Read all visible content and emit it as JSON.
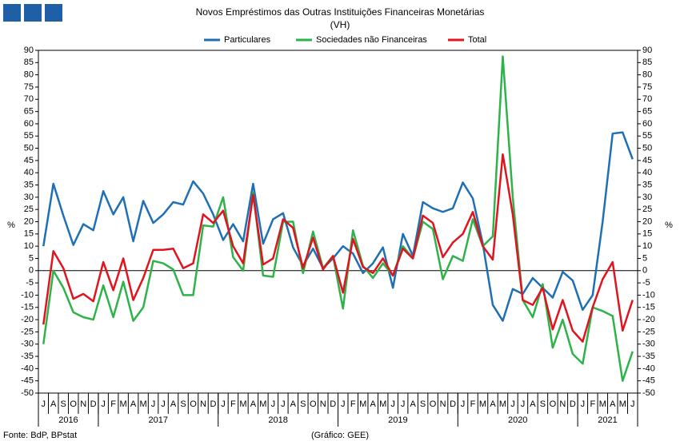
{
  "chart_data": {
    "type": "line",
    "title": "Novos Empréstimos das Outras Instituições Financeiras Monetárias",
    "subtitle": "(VH)",
    "y_label": "%",
    "y2_label": "%",
    "source": "Fonte: BdP, BPstat",
    "credit": "(Gráfico: GEE)",
    "categories": [
      "J",
      "A",
      "S",
      "O",
      "N",
      "D",
      "J",
      "F",
      "M",
      "A",
      "M",
      "J",
      "J",
      "A",
      "S",
      "O",
      "N",
      "D",
      "J",
      "F",
      "M",
      "A",
      "M",
      "J",
      "J",
      "A",
      "S",
      "O",
      "N",
      "D",
      "J",
      "F",
      "M",
      "A",
      "M",
      "J",
      "J",
      "A",
      "S",
      "O",
      "N",
      "D",
      "J",
      "F",
      "M",
      "A",
      "M",
      "J",
      "J",
      "A",
      "S",
      "O",
      "N",
      "D",
      "J",
      "F",
      "M",
      "A",
      "M",
      "J"
    ],
    "years": [
      "2016",
      "2017",
      "2018",
      "2019",
      "2020",
      "2021"
    ],
    "series": [
      {
        "name": "Particulares",
        "color": "#1f6fb4",
        "values": [
          10,
          35.5,
          22.5,
          10.5,
          19,
          16.5,
          32.5,
          23,
          30,
          12,
          28.5,
          19.5,
          23,
          28,
          27,
          36.5,
          31.5,
          23,
          12.5,
          19,
          12,
          35.5,
          11,
          21,
          23.5,
          9.5,
          2,
          9,
          1,
          5,
          10,
          7,
          -1,
          3,
          9.5,
          -7,
          15,
          6,
          28,
          25.5,
          24,
          25.5,
          36,
          29.5,
          11,
          -14,
          -20.5,
          -7.5,
          -9.5,
          -3,
          -7,
          -11,
          -0.5,
          -4,
          -16,
          -10,
          20,
          56,
          56.5,
          45.5
        ]
      },
      {
        "name": "Sociedades não Financeiras",
        "color": "#2db34a",
        "values": [
          -30,
          0,
          -7,
          -17,
          -19,
          -20,
          -6,
          -19,
          -4.5,
          -20.5,
          -15,
          4,
          3,
          0.5,
          -10,
          -10,
          18.5,
          18,
          30,
          5.5,
          0,
          32,
          -2,
          -2.5,
          20,
          20,
          -1,
          16,
          1,
          6,
          -15.5,
          16.5,
          2,
          -3,
          3,
          -2,
          10,
          5,
          20,
          17,
          -3.5,
          6,
          4,
          21,
          10,
          14,
          87.5,
          30,
          -12,
          -19,
          -5.5,
          -31.5,
          -20,
          -34,
          -38,
          -15,
          -16.5,
          -18.5,
          -45,
          -33
        ]
      },
      {
        "name": "Total",
        "color": "#e0141e",
        "values": [
          -22,
          8,
          1,
          -11.5,
          -9.5,
          -12.5,
          3.5,
          -8,
          5,
          -12,
          -3,
          8.5,
          8.5,
          9,
          1,
          3,
          23,
          19.5,
          24.5,
          10,
          3,
          31,
          2.5,
          5,
          21,
          17.5,
          1,
          13.5,
          0.5,
          6,
          -9,
          13,
          1.5,
          -1,
          5,
          -2,
          9,
          5,
          22.5,
          19.5,
          5.5,
          11.5,
          15,
          24,
          10,
          4.5,
          47.5,
          23,
          -12,
          -14,
          -7,
          -24,
          -12,
          -24.5,
          -29,
          -15,
          -3.5,
          3.5,
          -24.5,
          -12
        ]
      }
    ],
    "ylim": [
      -50,
      90
    ],
    "yticks": [
      -50,
      -45,
      -40,
      -35,
      -30,
      -25,
      -20,
      -15,
      -10,
      -5,
      0,
      5,
      10,
      15,
      20,
      25,
      30,
      35,
      40,
      45,
      50,
      55,
      60,
      65,
      70,
      75,
      80,
      85,
      90
    ],
    "y2lim": [
      -50,
      90
    ],
    "y2ticks": [
      -50,
      -45,
      -40,
      -35,
      -30,
      -25,
      -20,
      -15,
      -10,
      -5,
      0,
      5,
      10,
      15,
      20,
      25,
      30,
      35,
      40,
      45,
      50,
      55,
      60,
      65,
      70,
      75,
      80,
      85,
      90
    ],
    "grid": false,
    "legend": "top"
  }
}
